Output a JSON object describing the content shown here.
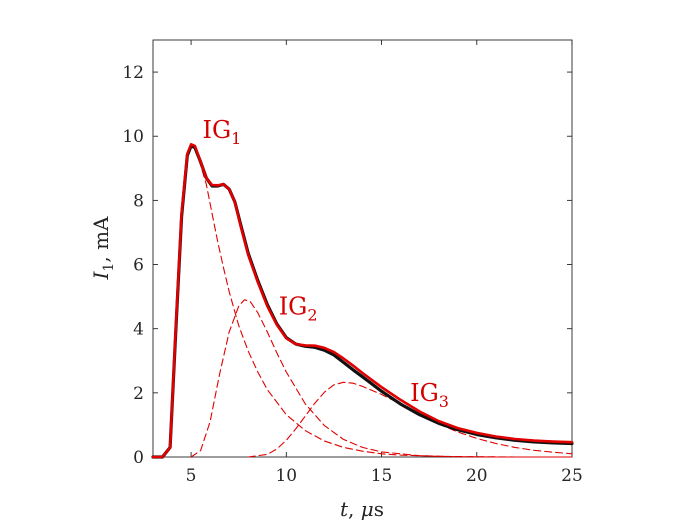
{
  "chart_data": {
    "type": "line",
    "xlabel_parts": {
      "var": "t",
      "sep": ", ",
      "unit_prefix": "μ",
      "unit": "s"
    },
    "ylabel_parts": {
      "var": "I",
      "sub": "1",
      "sep": ", ",
      "unit": "mA"
    },
    "xlim": [
      3,
      25
    ],
    "ylim": [
      0,
      13
    ],
    "xticks": [
      5,
      10,
      15,
      20,
      25
    ],
    "yticks": [
      0,
      2,
      4,
      6,
      8,
      10,
      12
    ],
    "grid": false,
    "colors": {
      "measured": "#111111",
      "fit": "#e00000",
      "components": "#e00000",
      "annotation": "#d40000"
    },
    "annotations": [
      {
        "text": "IG",
        "sub": "1",
        "x": 5.6,
        "y": 9.95
      },
      {
        "text": "IG",
        "sub": "2",
        "x": 9.6,
        "y": 4.45
      },
      {
        "text": "IG",
        "sub": "3",
        "x": 16.5,
        "y": 1.75
      }
    ],
    "series": [
      {
        "style": "solid-dark",
        "x": [
          3.0,
          3.5,
          3.9,
          4.2,
          4.5,
          4.8,
          5.0,
          5.2,
          5.5,
          5.8,
          6.1,
          6.4,
          6.7,
          7.0,
          7.3,
          7.6,
          8.0,
          8.5,
          9.0,
          9.5,
          10.0,
          10.5,
          11.0,
          11.5,
          12.0,
          12.5,
          13.0,
          13.5,
          14.0,
          15.0,
          16.0,
          17.0,
          18.0,
          19.0,
          20.0,
          21.0,
          22.0,
          23.0,
          24.0,
          25.0
        ],
        "y": [
          0.0,
          0.0,
          0.3,
          4.0,
          7.5,
          9.4,
          9.7,
          9.65,
          9.2,
          8.7,
          8.45,
          8.45,
          8.5,
          8.35,
          7.95,
          7.25,
          6.35,
          5.5,
          4.75,
          4.15,
          3.72,
          3.52,
          3.45,
          3.42,
          3.33,
          3.18,
          2.95,
          2.72,
          2.5,
          2.05,
          1.65,
          1.32,
          1.05,
          0.85,
          0.7,
          0.6,
          0.52,
          0.47,
          0.44,
          0.42
        ]
      },
      {
        "style": "solid-fit",
        "x": [
          3.0,
          3.5,
          3.9,
          4.2,
          4.5,
          4.8,
          5.0,
          5.2,
          5.5,
          5.8,
          6.1,
          6.4,
          6.7,
          7.0,
          7.3,
          7.6,
          8.0,
          8.5,
          9.0,
          9.5,
          10.0,
          10.5,
          11.0,
          11.5,
          12.0,
          12.5,
          13.0,
          13.5,
          14.0,
          15.0,
          16.0,
          17.0,
          18.0,
          19.0,
          20.0,
          21.0,
          22.0,
          23.0,
          24.0,
          25.0
        ],
        "y": [
          0.0,
          0.0,
          0.3,
          4.1,
          7.6,
          9.45,
          9.75,
          9.7,
          9.2,
          8.7,
          8.48,
          8.47,
          8.5,
          8.35,
          7.95,
          7.2,
          6.3,
          5.45,
          4.7,
          4.12,
          3.7,
          3.52,
          3.48,
          3.47,
          3.4,
          3.27,
          3.07,
          2.85,
          2.62,
          2.18,
          1.78,
          1.42,
          1.12,
          0.9,
          0.75,
          0.64,
          0.56,
          0.51,
          0.48,
          0.46
        ]
      },
      {
        "name": "IG1",
        "style": "dashed",
        "x": [
          3.0,
          3.5,
          3.9,
          4.2,
          4.5,
          4.8,
          5.0,
          5.2,
          5.5,
          5.8,
          6.1,
          6.4,
          6.7,
          7.0,
          7.5,
          8.0,
          8.5,
          9.0,
          10.0,
          11.0,
          12.0,
          13.0,
          14.0,
          15.0,
          16.0,
          18.0,
          20.0,
          22.0,
          25.0
        ],
        "y": [
          0.0,
          0.0,
          0.3,
          4.0,
          7.5,
          9.4,
          9.7,
          9.6,
          9.1,
          8.5,
          7.6,
          6.7,
          5.9,
          5.15,
          4.1,
          3.3,
          2.65,
          2.1,
          1.32,
          0.82,
          0.5,
          0.3,
          0.18,
          0.1,
          0.06,
          0.02,
          0.01,
          0.0,
          0.0
        ]
      },
      {
        "name": "IG2",
        "style": "dashed",
        "x": [
          5.0,
          5.5,
          6.0,
          6.5,
          7.0,
          7.5,
          7.8,
          8.1,
          8.5,
          9.0,
          9.5,
          10.0,
          11.0,
          12.0,
          13.0,
          14.0,
          15.0,
          17.0,
          19.0,
          21.0,
          23.0,
          25.0
        ],
        "y": [
          0.0,
          0.2,
          1.1,
          2.6,
          3.9,
          4.7,
          4.9,
          4.85,
          4.5,
          3.9,
          3.25,
          2.65,
          1.65,
          0.98,
          0.55,
          0.3,
          0.16,
          0.04,
          0.01,
          0.0,
          0.0,
          0.0
        ]
      },
      {
        "name": "IG3",
        "style": "dashed",
        "x": [
          8.0,
          9.0,
          9.5,
          10.0,
          10.5,
          11.0,
          11.5,
          12.0,
          12.5,
          13.0,
          13.5,
          14.0,
          15.0,
          16.0,
          17.0,
          18.0,
          19.0,
          20.0,
          21.0,
          22.0,
          23.0,
          24.0,
          25.0
        ],
        "y": [
          0.0,
          0.08,
          0.25,
          0.52,
          0.88,
          1.28,
          1.68,
          2.02,
          2.25,
          2.33,
          2.3,
          2.2,
          1.95,
          1.65,
          1.32,
          1.03,
          0.78,
          0.58,
          0.42,
          0.3,
          0.21,
          0.15,
          0.1
        ]
      }
    ]
  }
}
